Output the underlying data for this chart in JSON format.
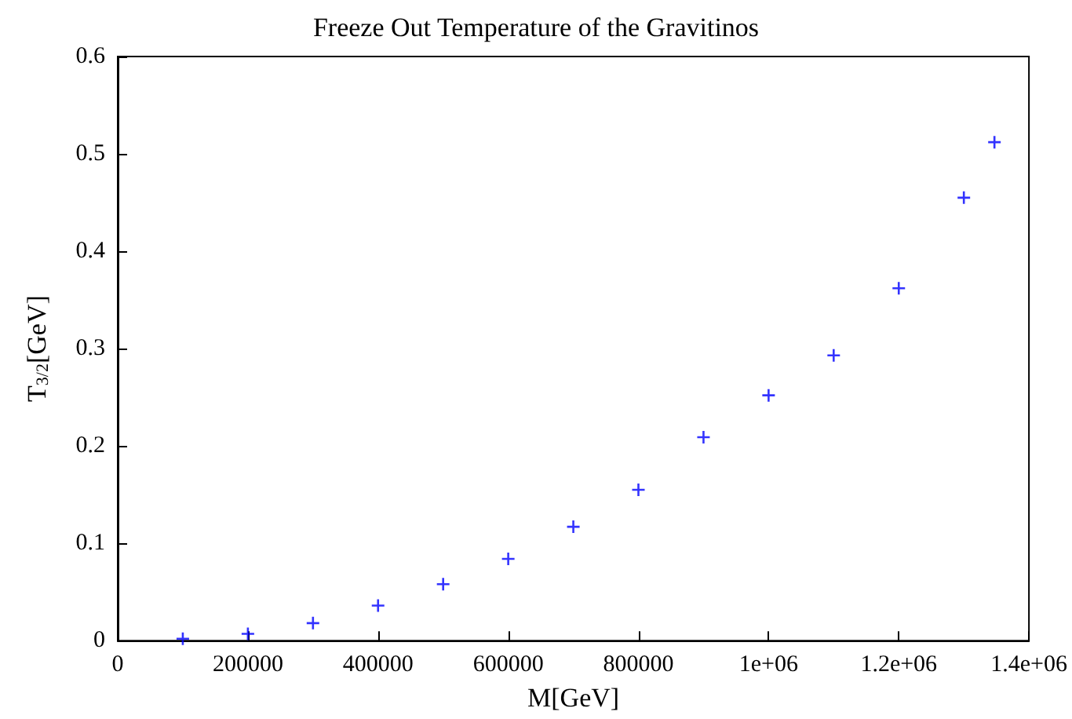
{
  "chart_data": {
    "type": "scatter",
    "title": "Freeze Out Temperature of the Gravitinos",
    "xlabel": "M[GeV]",
    "ylabel": "T$_{3/2}$[GeV]",
    "x": [
      100000,
      200000,
      300000,
      400000,
      500000,
      600000,
      700000,
      800000,
      900000,
      1000000,
      1100000,
      1200000,
      1300000,
      1347000
    ],
    "series": [
      {
        "color": "#0000ff",
        "values": [
          0.002,
          0.007,
          0.018,
          0.036,
          0.058,
          0.084,
          0.117,
          0.155,
          0.209,
          0.252,
          0.293,
          0.362,
          0.455,
          0.512
        ]
      }
    ],
    "xlim": [
      0,
      1400000
    ],
    "xticks": [
      0,
      200000,
      400000,
      600000,
      800000,
      {
        "value": 1000000,
        "label": "1e+06"
      },
      {
        "value": 1200000,
        "label": "1.2e+06"
      },
      {
        "value": 1400000,
        "label": "1.4e+06"
      }
    ],
    "ylim": [
      0,
      0.6
    ],
    "yticks": [
      0,
      0.1,
      0.2,
      0.3,
      0.4,
      0.5,
      0.6
    ],
    "grid": false,
    "marker": "cross"
  }
}
